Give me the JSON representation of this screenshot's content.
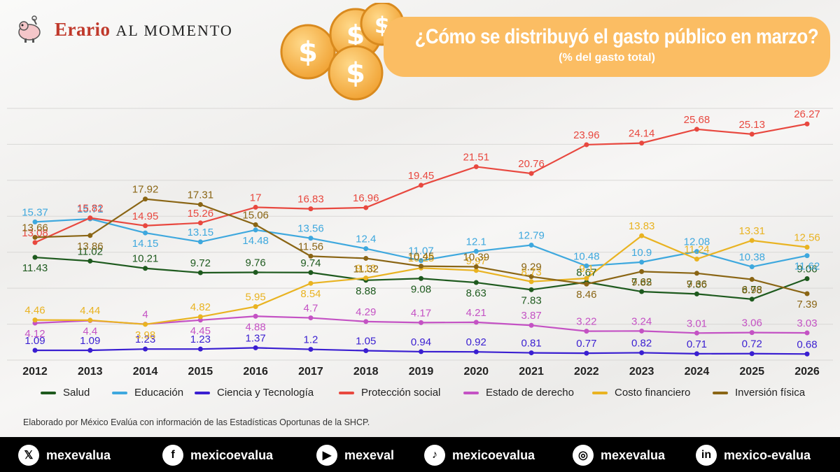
{
  "header": {
    "logo_brand": "Erario",
    "logo_suffix": "AL MOMENTO",
    "title": "¿Cómo se distribuyó el gasto público en marzo?",
    "subtitle": "(% del gasto total)"
  },
  "source_note": "Elaborado por México Evalúa con información de las Estadísticas Oportunas de la SHCP.",
  "social": [
    {
      "icon": "x-icon",
      "glyph": "𝕏",
      "label": "mexevalua"
    },
    {
      "icon": "facebook-icon",
      "glyph": "f",
      "label": "mexicoevalua"
    },
    {
      "icon": "youtube-icon",
      "glyph": "▶",
      "label": "mexeval"
    },
    {
      "icon": "tiktok-icon",
      "glyph": "♪",
      "label": "mexicoevalua"
    },
    {
      "icon": "instagram-icon",
      "glyph": "◎",
      "label": "mexevalua"
    },
    {
      "icon": "linkedin-icon",
      "glyph": "in",
      "label": "mexico-evalua"
    }
  ],
  "chart_data": {
    "type": "line",
    "title": "¿Cómo se distribuyó el gasto público en marzo?",
    "subtitle": "(% del gasto total)",
    "xlabel": "",
    "ylabel": "",
    "x": [
      "2012",
      "2013",
      "2014",
      "2015",
      "2016",
      "2017",
      "2018",
      "2019",
      "2020",
      "2021",
      "2022",
      "2023",
      "2024",
      "2025",
      "2026"
    ],
    "ylim": [
      0,
      28
    ],
    "grid": true,
    "legend_position": "bottom",
    "series": [
      {
        "name": "Salud",
        "color": "#1e5a1e",
        "values": [
          11.43,
          11.02,
          10.21,
          9.72,
          9.76,
          9.74,
          8.88,
          9.08,
          8.63,
          7.83,
          8.67,
          7.62,
          7.36,
          6.78,
          9.06
        ]
      },
      {
        "name": "Educación",
        "color": "#3ea8de",
        "values": [
          15.37,
          15.71,
          14.15,
          13.15,
          14.48,
          13.56,
          12.4,
          11.07,
          12.1,
          12.79,
          10.48,
          10.9,
          12.08,
          10.38,
          11.62
        ]
      },
      {
        "name": "Ciencia y Tecnología",
        "color": "#3a1fd1",
        "values": [
          1.09,
          1.09,
          1.23,
          1.23,
          1.37,
          1.2,
          1.05,
          0.94,
          0.92,
          0.81,
          0.77,
          0.82,
          0.71,
          0.72,
          0.68
        ]
      },
      {
        "name": "Protección social",
        "color": "#e8483f",
        "values": [
          13.08,
          15.82,
          14.95,
          15.26,
          17,
          16.83,
          16.96,
          19.45,
          21.51,
          20.76,
          23.96,
          24.14,
          25.68,
          25.13,
          26.27
        ]
      },
      {
        "name": "Estado de derecho",
        "color": "#c452c4",
        "values": [
          4.12,
          4.4,
          4,
          4.45,
          4.88,
          4.7,
          4.29,
          4.17,
          4.21,
          3.87,
          3.22,
          3.24,
          3.01,
          3.06,
          3.03
        ]
      },
      {
        "name": "Costo financiero",
        "color": "#e9b321",
        "values": [
          4.46,
          4.44,
          3.98,
          4.82,
          5.95,
          8.54,
          9.13,
          10.25,
          9.97,
          8.73,
          9.1,
          13.83,
          11.24,
          13.31,
          12.56
        ]
      },
      {
        "name": "Inversión física",
        "color": "#8a6514",
        "values": [
          13.66,
          13.86,
          17.92,
          17.31,
          15.06,
          11.56,
          11.32,
          10.45,
          10.39,
          9.29,
          8.46,
          9.85,
          9.66,
          8.98,
          7.39
        ]
      }
    ]
  }
}
